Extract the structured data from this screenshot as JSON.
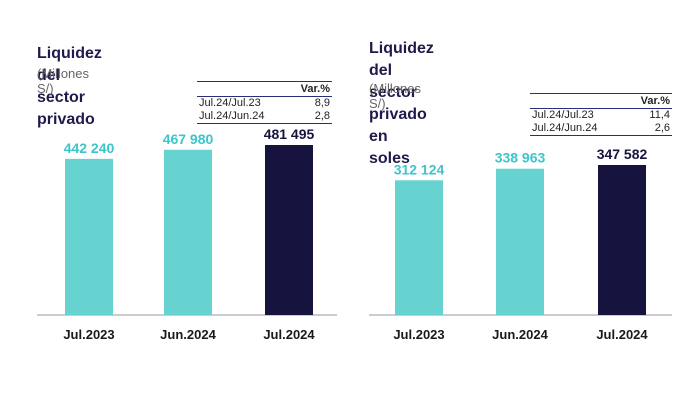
{
  "colors": {
    "teal": "#66d3d0",
    "navy": "#16143f",
    "title": "#1e1b4b",
    "label_teal": "#3cc5cb",
    "axis": "#999999"
  },
  "panels": [
    {
      "title_lines": [
        "Liquidez del sector privado"
      ],
      "subtitle": "(Millones S/)",
      "table": {
        "header": "Var.%",
        "rows": [
          {
            "label": "Jul.24/Jul.23",
            "value": "8,9"
          },
          {
            "label": "Jul.24/Jun.24",
            "value": "2,8"
          }
        ]
      },
      "chart_data": {
        "type": "bar",
        "title": "Liquidez del sector privado",
        "subtitle": "(Millones S/)",
        "categories": [
          "Jul.2023",
          "Jun.2024",
          "Jul.2024"
        ],
        "values": [
          442240,
          467980,
          481495
        ],
        "value_labels": [
          "442 240",
          "467 980",
          "481 495"
        ],
        "bar_colors": [
          "#66d3d0",
          "#66d3d0",
          "#16143f"
        ],
        "label_colors": [
          "#3cc5cb",
          "#3cc5cb",
          "#16143f"
        ],
        "ylim": [
          0,
          510000
        ],
        "grid": false,
        "legend": "none"
      }
    },
    {
      "title_lines": [
        "Liquidez del sector privado en",
        "soles"
      ],
      "subtitle": "(Millones S/)",
      "table": {
        "header": "Var.%",
        "rows": [
          {
            "label": "Jul.24/Jul.23",
            "value": "11,4"
          },
          {
            "label": "Jul.24/Jun.24",
            "value": "2,6"
          }
        ]
      },
      "chart_data": {
        "type": "bar",
        "title": "Liquidez del sector privado en soles",
        "subtitle": "(Millones S/)",
        "categories": [
          "Jul.2023",
          "Jun.2024",
          "Jul.2024"
        ],
        "values": [
          312124,
          338963,
          347582
        ],
        "value_labels": [
          "312 124",
          "338 963",
          "347 582"
        ],
        "bar_colors": [
          "#66d3d0",
          "#66d3d0",
          "#16143f"
        ],
        "label_colors": [
          "#3cc5cb",
          "#3cc5cb",
          "#16143f"
        ],
        "ylim": [
          0,
          450000
        ],
        "grid": false,
        "legend": "none"
      }
    }
  ]
}
